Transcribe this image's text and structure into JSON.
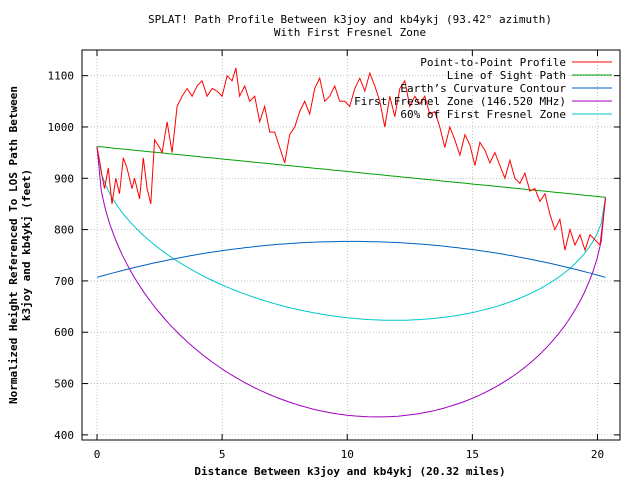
{
  "chart_data": {
    "type": "line",
    "title": "SPLAT! Path Profile Between k3joy and kb4ykj (93.42° azimuth)",
    "subtitle": "With First Fresnel Zone",
    "xlabel": "Distance Between k3joy and kb4ykj (20.32 miles)",
    "ylabel_line1": "Normalized Height Referenced To LOS Path Between",
    "ylabel_line2": "k3joy and kb4ykj (feet)",
    "xlim": [
      -0.6,
      20.9
    ],
    "ylim": [
      390,
      1150
    ],
    "xticks": [
      0,
      5,
      10,
      15,
      20
    ],
    "yticks": [
      400,
      500,
      600,
      700,
      800,
      900,
      1000,
      1100
    ],
    "grid": true,
    "legend_position": "top-right",
    "series": [
      {
        "name": "Point-to-Point Profile",
        "color": "#ff0000",
        "kind": "profile",
        "x": [
          0,
          0.1,
          0.2,
          0.3,
          0.45,
          0.6,
          0.75,
          0.9,
          1.05,
          1.2,
          1.4,
          1.5,
          1.7,
          1.85,
          2.0,
          2.15,
          2.3,
          2.5,
          2.6,
          2.8,
          3.0,
          3.2,
          3.4,
          3.6,
          3.8,
          4.0,
          4.2,
          4.4,
          4.6,
          4.8,
          5.0,
          5.2,
          5.4,
          5.55,
          5.7,
          5.9,
          6.1,
          6.3,
          6.5,
          6.7,
          6.9,
          7.1,
          7.3,
          7.5,
          7.7,
          7.9,
          8.1,
          8.3,
          8.5,
          8.7,
          8.9,
          9.1,
          9.3,
          9.5,
          9.7,
          9.9,
          10.1,
          10.3,
          10.5,
          10.7,
          10.9,
          11.1,
          11.3,
          11.5,
          11.7,
          11.9,
          12.1,
          12.3,
          12.5,
          12.7,
          12.9,
          13.1,
          13.3,
          13.5,
          13.7,
          13.9,
          14.1,
          14.3,
          14.5,
          14.7,
          14.9,
          15.1,
          15.3,
          15.5,
          15.7,
          15.9,
          16.1,
          16.3,
          16.5,
          16.7,
          16.9,
          17.1,
          17.3,
          17.5,
          17.7,
          17.9,
          18.1,
          18.3,
          18.5,
          18.7,
          18.9,
          19.1,
          19.3,
          19.5,
          19.7,
          19.9,
          20.1,
          20.32
        ],
        "y": [
          960,
          935,
          905,
          880,
          920,
          850,
          900,
          870,
          940,
          920,
          880,
          900,
          860,
          940,
          880,
          850,
          975,
          960,
          950,
          1010,
          950,
          1040,
          1060,
          1075,
          1060,
          1080,
          1090,
          1060,
          1075,
          1070,
          1060,
          1100,
          1090,
          1115,
          1060,
          1080,
          1050,
          1060,
          1010,
          1040,
          990,
          990,
          960,
          930,
          985,
          1000,
          1030,
          1050,
          1025,
          1075,
          1095,
          1050,
          1060,
          1080,
          1050,
          1050,
          1040,
          1075,
          1095,
          1070,
          1105,
          1080,
          1050,
          1000,
          1060,
          1020,
          1075,
          1090,
          1040,
          1060,
          1045,
          1060,
          1025,
          1030,
          1000,
          960,
          1000,
          975,
          945,
          985,
          965,
          925,
          970,
          955,
          930,
          950,
          925,
          900,
          935,
          900,
          890,
          910,
          875,
          880,
          855,
          870,
          830,
          800,
          820,
          760,
          800,
          770,
          790,
          760,
          790,
          780,
          770,
          860
        ]
      },
      {
        "name": "Line of Sight Path",
        "color": "#00a000",
        "kind": "los"
      },
      {
        "name": "Earth’s Curvature Contour",
        "color": "#0060c0",
        "kind": "earth"
      },
      {
        "name": "First Fresnel Zone (146.520 MHz)",
        "color": "#a000c0",
        "kind": "fresnel"
      },
      {
        "name": "60% of First Fresnel Zone",
        "color": "#00c8c8",
        "kind": "fresnel60"
      }
    ],
    "los": {
      "y_start": 962,
      "y_end": 863
    },
    "earth": {
      "y_start": 707,
      "y_peak": 777,
      "y_end": 707
    },
    "fresnel": {
      "depth": 475
    },
    "fresnel60": {
      "depth": 285
    }
  }
}
